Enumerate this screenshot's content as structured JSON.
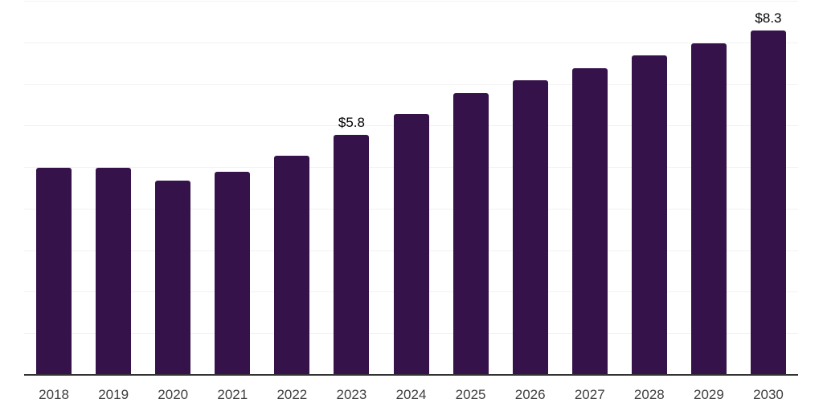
{
  "chart_data": {
    "type": "bar",
    "title": "",
    "xlabel": "",
    "ylabel": "",
    "categories": [
      "2018",
      "2019",
      "2020",
      "2021",
      "2022",
      "2023",
      "2024",
      "2025",
      "2026",
      "2027",
      "2028",
      "2029",
      "2030"
    ],
    "values": [
      5.0,
      5.0,
      4.7,
      4.9,
      5.3,
      5.8,
      6.3,
      6.8,
      7.1,
      7.4,
      7.7,
      8.0,
      8.3
    ],
    "labeled_points": {
      "2023": "$5.8",
      "2030": "$8.3"
    },
    "value_unit_prefix": "$",
    "ylim": [
      0,
      9
    ],
    "gridline_interval": 1,
    "grid": "horizontal",
    "legend": "none"
  },
  "colors": {
    "background": "#ffffff",
    "bar": "#36124b",
    "gridline": "#f2f2f2",
    "axis_line": "#333333",
    "tick_label": "#404040",
    "value_label": "#000000"
  }
}
